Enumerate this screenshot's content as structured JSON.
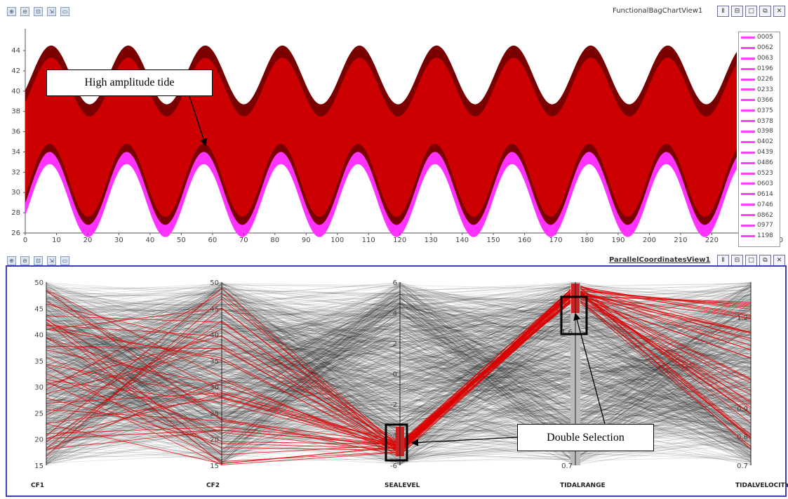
{
  "top_view": {
    "title": "FunctionalBagChartView1",
    "y_ticks": [
      "44",
      "42",
      "40",
      "38",
      "36",
      "34",
      "32",
      "30",
      "28",
      "26"
    ],
    "x_ticks": [
      "0",
      "10",
      "20",
      "30",
      "40",
      "50",
      "60",
      "70",
      "80",
      "90",
      "100",
      "110",
      "120",
      "130",
      "140",
      "150",
      "160",
      "170",
      "180",
      "190",
      "200",
      "210",
      "220"
    ],
    "x_tick_overflow": "0",
    "legend": [
      "0005",
      "0062",
      "0063",
      "0196",
      "0226",
      "0233",
      "0366",
      "0375",
      "0378",
      "0398",
      "0402",
      "0439",
      "0486",
      "0523",
      "0603",
      "0614",
      "0746",
      "0862",
      "0977",
      "1198"
    ],
    "colors": {
      "outer_band": "#7a0000",
      "inner_band": "#cc0000",
      "highlight": "#ff33ff"
    }
  },
  "bottom_view": {
    "title": "ParallelCoordinatesView1",
    "axes": [
      {
        "name": "CF1",
        "ticks": [
          "50",
          "45",
          "40",
          "35",
          "30",
          "25",
          "20",
          "15"
        ]
      },
      {
        "name": "CF2",
        "ticks": [
          "50",
          "45",
          "40",
          "35",
          "30",
          "25",
          "20",
          "15"
        ]
      },
      {
        "name": "SEALEVEL",
        "ticks": [
          "6",
          "4",
          "2",
          "0",
          "-2",
          "-4",
          "-6"
        ]
      },
      {
        "name": "TIDALRANGE",
        "ticks": [
          "1.6",
          "0.7"
        ]
      },
      {
        "name": "TIDALVELOCITY",
        "ticks": [
          "1.2",
          "0.9",
          "0.8",
          "0.7"
        ]
      }
    ],
    "colors": {
      "lines": "#000000",
      "selected": "#dd0000"
    }
  },
  "toolbar_icons": [
    "zoom-icon",
    "zoom-out-icon",
    "reset-icon",
    "select-icon",
    "export-icon"
  ],
  "window_buttons": [
    "Ⅱ",
    "⊟",
    "□",
    "⧉",
    "✕"
  ],
  "annotations": {
    "high_amplitude": "High amplitude tide",
    "double_selection": "Double Selection"
  }
}
